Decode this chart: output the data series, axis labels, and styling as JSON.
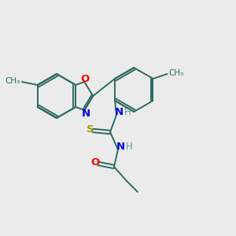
{
  "background_color": "#ebebeb",
  "bond_color": "#2d6b5e",
  "atom_colors": {
    "N": "#0000ee",
    "O": "#ff0000",
    "S": "#999900",
    "C": "#2d6b5e",
    "H": "#5599aa"
  },
  "figsize": [
    3.0,
    3.0
  ],
  "dpi": 100
}
